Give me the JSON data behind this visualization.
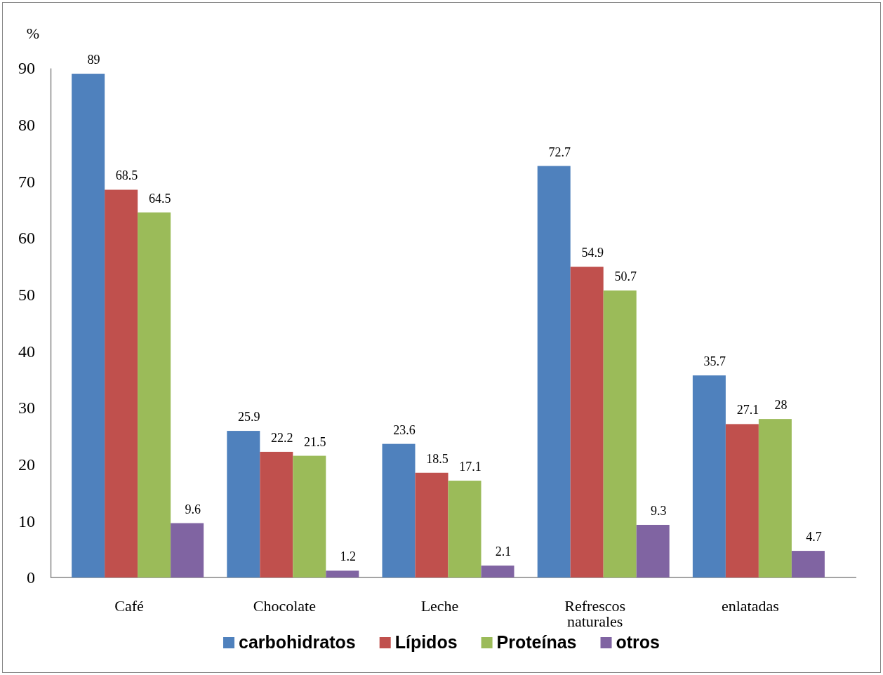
{
  "chart_data": {
    "type": "bar",
    "ylabel": "%",
    "categories": [
      "Café",
      "Chocolate",
      "Leche",
      "Refrescos naturales",
      "enlatadas"
    ],
    "series": [
      {
        "name": "carbohidratos",
        "color": "#4f81bd",
        "values": [
          89,
          25.9,
          23.6,
          72.7,
          35.7
        ]
      },
      {
        "name": "Lípidos",
        "color": "#c0504d",
        "values": [
          68.5,
          22.2,
          18.5,
          54.9,
          27.1
        ]
      },
      {
        "name": "Proteínas",
        "color": "#9bbb59",
        "values": [
          64.5,
          21.5,
          17.1,
          50.7,
          28
        ]
      },
      {
        "name": "otros",
        "color": "#8064a2",
        "values": [
          9.6,
          1.2,
          2.1,
          9.3,
          4.7
        ]
      }
    ],
    "ylim": [
      0,
      90
    ],
    "yticks": [
      0,
      10,
      20,
      30,
      40,
      50,
      60,
      70,
      80,
      90
    ],
    "data_labels": true,
    "legend": "bottom"
  }
}
